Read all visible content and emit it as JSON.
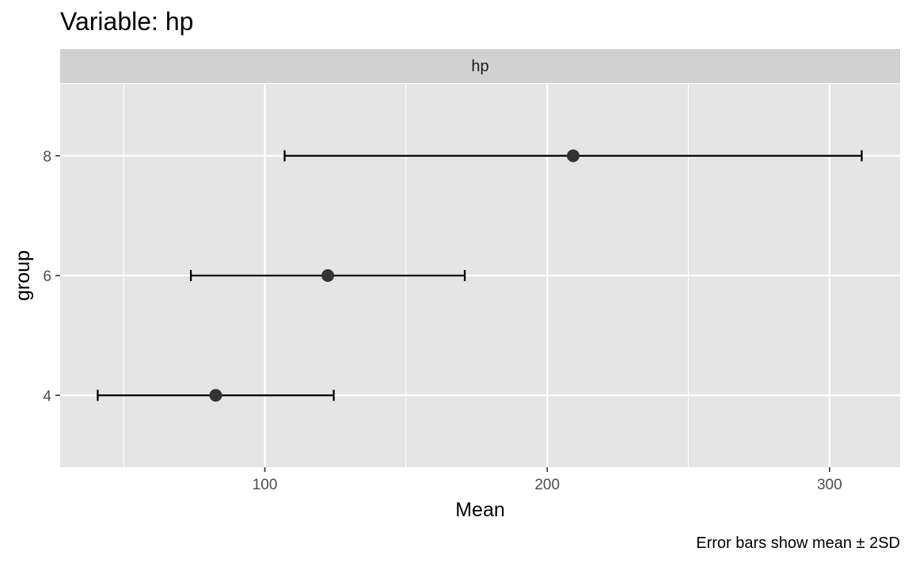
{
  "chart_data": {
    "type": "errorbar",
    "title": "Variable: hp",
    "facet_label": "hp",
    "xlabel": "Mean",
    "ylabel": "group",
    "caption": "Error bars show mean ± 2SD",
    "xlim": [
      27.5,
      325
    ],
    "ylim": [
      2.8,
      9.2
    ],
    "x_ticks": [
      100,
      200,
      300
    ],
    "y_ticks": [
      4,
      6,
      8
    ],
    "grid": true,
    "points": [
      {
        "group": "4",
        "y": 4,
        "mean": 82.6,
        "low": 40.8,
        "high": 124.4
      },
      {
        "group": "6",
        "y": 6,
        "mean": 122.3,
        "low": 73.8,
        "high": 170.8
      },
      {
        "group": "8",
        "y": 8,
        "mean": 209.2,
        "low": 107.0,
        "high": 311.4
      }
    ],
    "colors": {
      "panel": "#e5e5e5",
      "strip": "#d1d1d1",
      "grid": "#ffffff",
      "point": "#333333",
      "errorbar": "#000000",
      "tick": "#333333"
    }
  }
}
